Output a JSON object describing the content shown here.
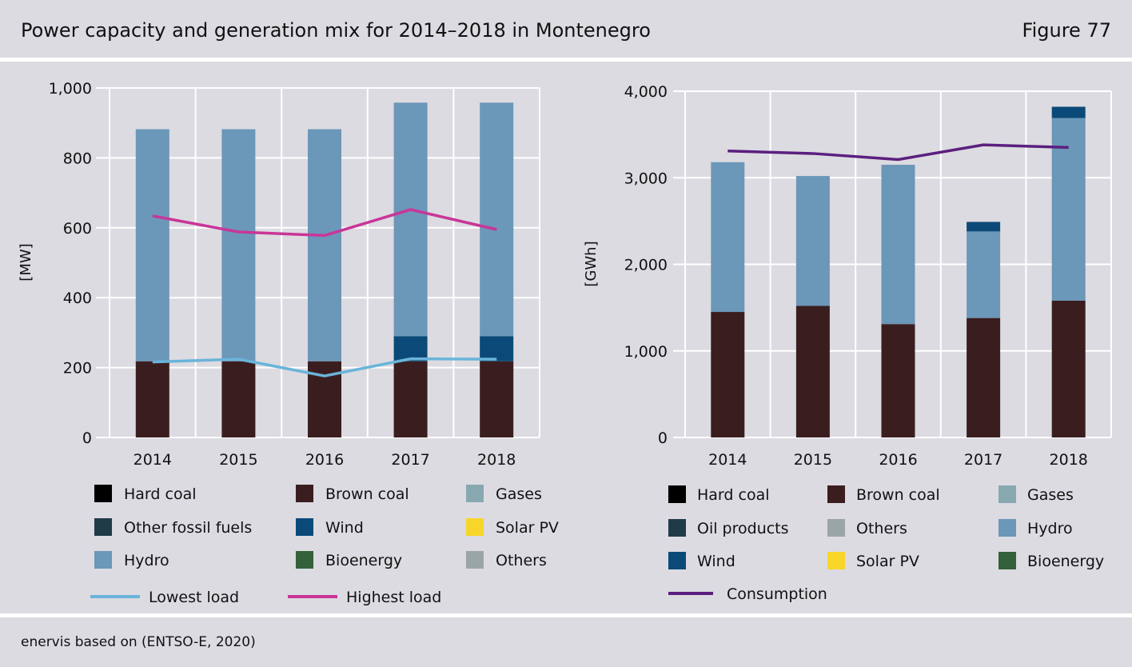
{
  "header": {
    "title": "Power capacity and generation mix for 2014–2018 in Montenegro",
    "figure": "Figure 77"
  },
  "source": "enervis based on (ENTSO-E, 2020)",
  "chart_data": [
    {
      "type": "bar",
      "stacked": true,
      "title": "",
      "ylabel": "[MW]",
      "ylim": [
        0,
        1000
      ],
      "yticks": [
        0,
        200,
        400,
        600,
        800,
        1000
      ],
      "ytick_labels": [
        "0",
        "200",
        "400",
        "600",
        "800",
        "1,000"
      ],
      "categories": [
        "2014",
        "2015",
        "2016",
        "2017",
        "2018"
      ],
      "grid": true,
      "series": [
        {
          "name": "Brown coal",
          "color": "#3a1e1f",
          "values": [
            218,
            218,
            218,
            218,
            218
          ]
        },
        {
          "name": "Wind",
          "color": "#0b4a78",
          "values": [
            0,
            0,
            0,
            72,
            72
          ]
        },
        {
          "name": "Hydro",
          "color": "#6b97b8",
          "values": [
            664,
            664,
            664,
            668,
            668
          ]
        }
      ],
      "lines": [
        {
          "name": "Lowest load",
          "color": "#6ab4da",
          "values": [
            216,
            224,
            176,
            225,
            224
          ]
        },
        {
          "name": "Highest load",
          "color": "#c93598",
          "values": [
            634,
            588,
            578,
            652,
            595
          ]
        }
      ],
      "legend": {
        "position": "bottom",
        "items": [
          {
            "label": "Hard coal",
            "color": "#000000",
            "kind": "box"
          },
          {
            "label": "Brown coal",
            "color": "#3a1e1f",
            "kind": "box"
          },
          {
            "label": "Gases",
            "color": "#88a8b0",
            "kind": "box"
          },
          {
            "label": "Other fossil fuels",
            "color": "#1f3b48",
            "kind": "box"
          },
          {
            "label": "Wind",
            "color": "#0b4a78",
            "kind": "box"
          },
          {
            "label": "Solar PV",
            "color": "#f7d629",
            "kind": "box"
          },
          {
            "label": "Hydro",
            "color": "#6b97b8",
            "kind": "box"
          },
          {
            "label": "Bioenergy",
            "color": "#33613a",
            "kind": "box"
          },
          {
            "label": "Others",
            "color": "#9ba5a6",
            "kind": "box"
          },
          {
            "label": "Lowest load",
            "color": "#6ab4da",
            "kind": "line"
          },
          {
            "label": "Highest load",
            "color": "#c93598",
            "kind": "line"
          }
        ]
      }
    },
    {
      "type": "bar",
      "stacked": true,
      "title": "",
      "ylabel": "[GWh]",
      "ylim": [
        0,
        4000
      ],
      "yticks": [
        0,
        1000,
        2000,
        3000,
        4000
      ],
      "ytick_labels": [
        "0",
        "1,000",
        "2,000",
        "3,000",
        "4,000"
      ],
      "categories": [
        "2014",
        "2015",
        "2016",
        "2017",
        "2018"
      ],
      "grid": true,
      "series": [
        {
          "name": "Brown coal",
          "color": "#3a1e1f",
          "values": [
            1450,
            1520,
            1310,
            1380,
            1580
          ]
        },
        {
          "name": "Hydro",
          "color": "#6b97b8",
          "values": [
            1730,
            1500,
            1840,
            1000,
            2110
          ]
        },
        {
          "name": "Wind",
          "color": "#0b4a78",
          "values": [
            0,
            0,
            0,
            110,
            130
          ]
        }
      ],
      "lines": [
        {
          "name": "Consumption",
          "color": "#5b1f7f",
          "values": [
            3310,
            3280,
            3210,
            3380,
            3350
          ]
        }
      ],
      "legend": {
        "position": "bottom",
        "items": [
          {
            "label": "Hard coal",
            "color": "#000000",
            "kind": "box"
          },
          {
            "label": "Brown coal",
            "color": "#3a1e1f",
            "kind": "box"
          },
          {
            "label": "Gases",
            "color": "#88a8b0",
            "kind": "box"
          },
          {
            "label": "Oil products",
            "color": "#1f3b48",
            "kind": "box"
          },
          {
            "label": "Others",
            "color": "#9ba5a6",
            "kind": "box"
          },
          {
            "label": "Hydro",
            "color": "#6b97b8",
            "kind": "box"
          },
          {
            "label": "Wind",
            "color": "#0b4a78",
            "kind": "box"
          },
          {
            "label": "Solar PV",
            "color": "#f7d629",
            "kind": "box"
          },
          {
            "label": "Bioenergy",
            "color": "#33613a",
            "kind": "box"
          },
          {
            "label": "Consumption",
            "color": "#5b1f7f",
            "kind": "line"
          }
        ]
      }
    }
  ]
}
